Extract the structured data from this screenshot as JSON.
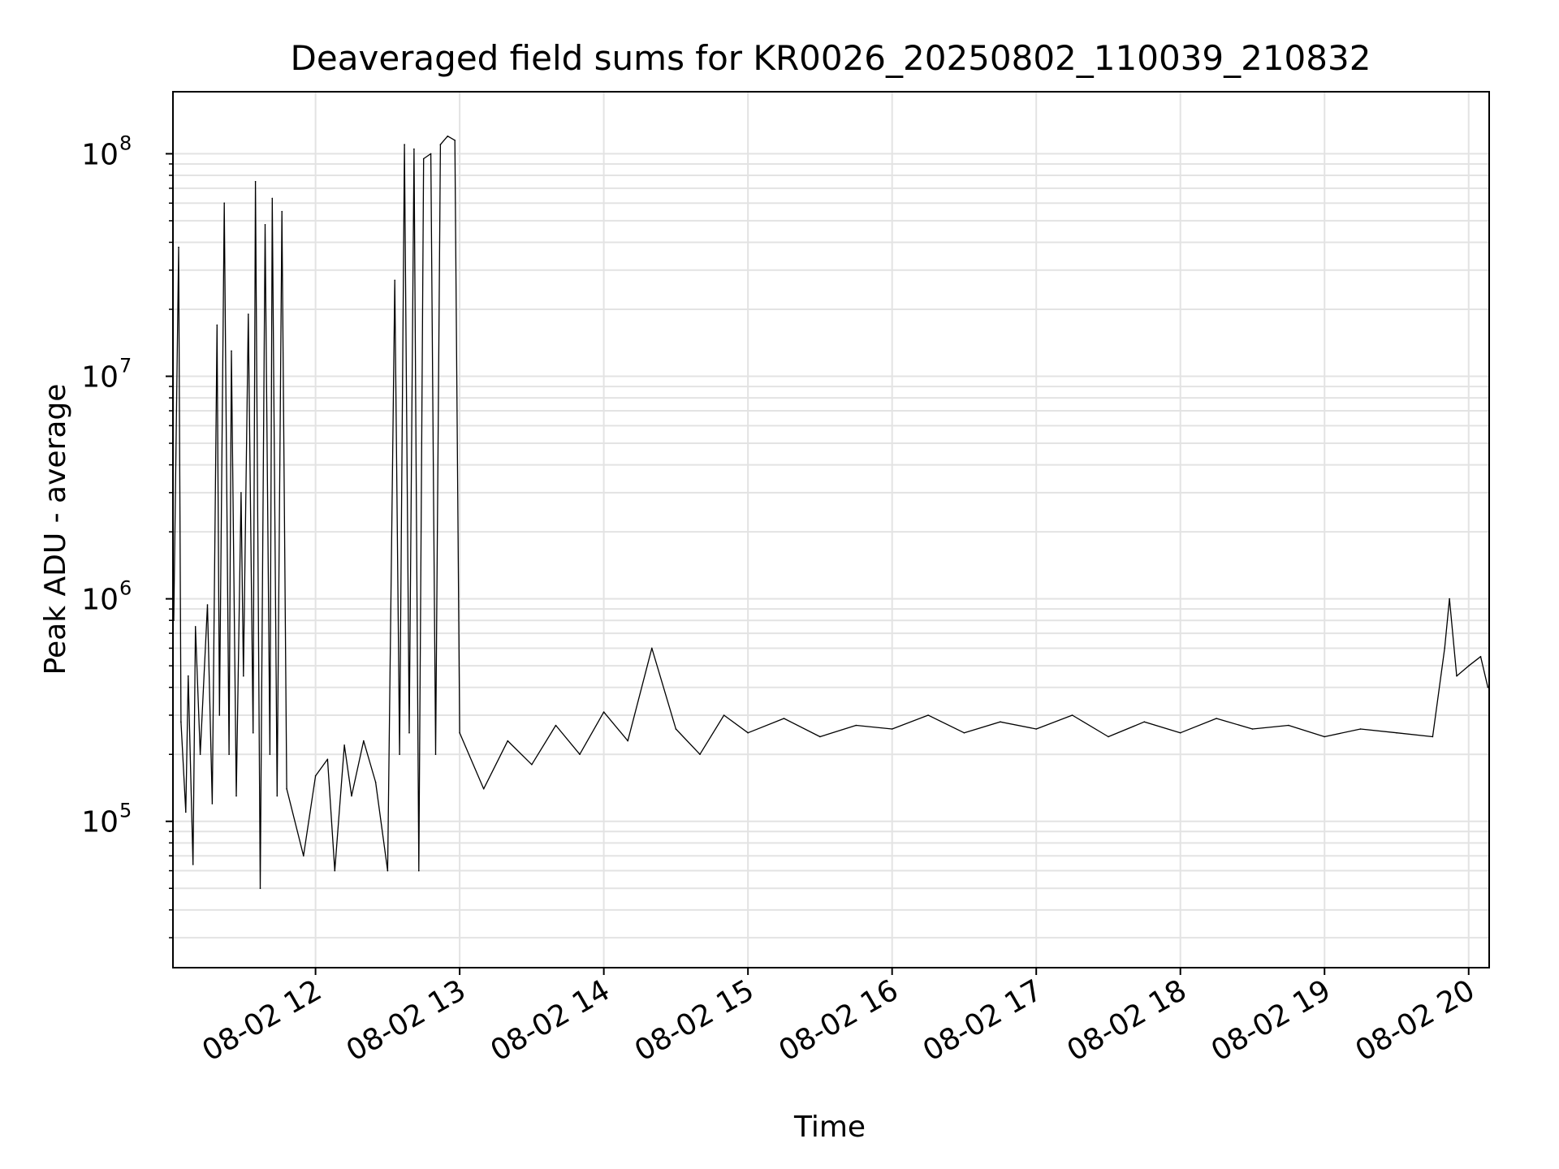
{
  "chart_data": {
    "type": "line",
    "title": "Deaveraged field sums for KR0026_20250802_110039_210832",
    "xlabel": "Time",
    "ylabel": "Peak ADU - average",
    "yscale": "log",
    "ylim": [
      22000,
      190000000
    ],
    "xlim": [
      "08-02 11:00:39",
      "08-02 20:08:32"
    ],
    "grid": true,
    "line_color": "#000000",
    "grid_color": "#e3e3e3",
    "x_ticks": [
      {
        "label": "08-02 12",
        "value": "08-02 12:00"
      },
      {
        "label": "08-02 13",
        "value": "08-02 13:00"
      },
      {
        "label": "08-02 14",
        "value": "08-02 14:00"
      },
      {
        "label": "08-02 15",
        "value": "08-02 15:00"
      },
      {
        "label": "08-02 16",
        "value": "08-02 16:00"
      },
      {
        "label": "08-02 17",
        "value": "08-02 17:00"
      },
      {
        "label": "08-02 18",
        "value": "08-02 18:00"
      },
      {
        "label": "08-02 19",
        "value": "08-02 19:00"
      },
      {
        "label": "08-02 20",
        "value": "08-02 20:00"
      }
    ],
    "y_ticks": [
      {
        "base": "10",
        "exp": "5",
        "value": 100000
      },
      {
        "base": "10",
        "exp": "6",
        "value": 1000000
      },
      {
        "base": "10",
        "exp": "7",
        "value": 10000000
      },
      {
        "base": "10",
        "exp": "8",
        "value": 100000000
      }
    ],
    "series": [
      {
        "points": [
          [
            "08-02 11:01",
            800000
          ],
          [
            "08-02 11:03",
            38000000
          ],
          [
            "08-02 11:04",
            280000
          ],
          [
            "08-02 11:06",
            110000
          ],
          [
            "08-02 11:07",
            450000
          ],
          [
            "08-02 11:09",
            64000
          ],
          [
            "08-02 11:10",
            750000
          ],
          [
            "08-02 11:12",
            200000
          ],
          [
            "08-02 11:15",
            940000
          ],
          [
            "08-02 11:17",
            120000
          ],
          [
            "08-02 11:19",
            17000000
          ],
          [
            "08-02 11:20",
            300000
          ],
          [
            "08-02 11:22",
            60000000
          ],
          [
            "08-02 11:24",
            200000
          ],
          [
            "08-02 11:25",
            13000000
          ],
          [
            "08-02 11:27",
            130000
          ],
          [
            "08-02 11:29",
            3000000
          ],
          [
            "08-02 11:30",
            450000
          ],
          [
            "08-02 11:32",
            19000000
          ],
          [
            "08-02 11:34",
            250000
          ],
          [
            "08-02 11:35",
            75000000
          ],
          [
            "08-02 11:37",
            50000
          ],
          [
            "08-02 11:39",
            48000000
          ],
          [
            "08-02 11:41",
            200000
          ],
          [
            "08-02 11:42",
            63000000
          ],
          [
            "08-02 11:44",
            130000
          ],
          [
            "08-02 11:46",
            55000000
          ],
          [
            "08-02 11:48",
            140000
          ],
          [
            "08-02 11:55",
            70000
          ],
          [
            "08-02 12:00",
            160000
          ],
          [
            "08-02 12:05",
            190000
          ],
          [
            "08-02 12:08",
            60000
          ],
          [
            "08-02 12:12",
            220000
          ],
          [
            "08-02 12:15",
            130000
          ],
          [
            "08-02 12:20",
            230000
          ],
          [
            "08-02 12:25",
            150000
          ],
          [
            "08-02 12:30",
            60000
          ],
          [
            "08-02 12:33",
            27000000
          ],
          [
            "08-02 12:35",
            200000
          ],
          [
            "08-02 12:37",
            110000000
          ],
          [
            "08-02 12:39",
            250000
          ],
          [
            "08-02 12:41",
            105000000
          ],
          [
            "08-02 12:43",
            60000
          ],
          [
            "08-02 12:45",
            95000000
          ],
          [
            "08-02 12:48",
            100000000
          ],
          [
            "08-02 12:50",
            200000
          ],
          [
            "08-02 12:52",
            110000000
          ],
          [
            "08-02 12:55",
            120000000
          ],
          [
            "08-02 12:58",
            115000000
          ],
          [
            "08-02 13:00",
            250000
          ],
          [
            "08-02 13:10",
            140000
          ],
          [
            "08-02 13:20",
            230000
          ],
          [
            "08-02 13:30",
            180000
          ],
          [
            "08-02 13:40",
            270000
          ],
          [
            "08-02 13:50",
            200000
          ],
          [
            "08-02 14:00",
            310000
          ],
          [
            "08-02 14:10",
            230000
          ],
          [
            "08-02 14:20",
            600000
          ],
          [
            "08-02 14:30",
            260000
          ],
          [
            "08-02 14:40",
            200000
          ],
          [
            "08-02 14:50",
            300000
          ],
          [
            "08-02 15:00",
            250000
          ],
          [
            "08-02 15:15",
            290000
          ],
          [
            "08-02 15:30",
            240000
          ],
          [
            "08-02 15:45",
            270000
          ],
          [
            "08-02 16:00",
            260000
          ],
          [
            "08-02 16:15",
            300000
          ],
          [
            "08-02 16:30",
            250000
          ],
          [
            "08-02 16:45",
            280000
          ],
          [
            "08-02 17:00",
            260000
          ],
          [
            "08-02 17:15",
            300000
          ],
          [
            "08-02 17:30",
            240000
          ],
          [
            "08-02 17:45",
            280000
          ],
          [
            "08-02 18:00",
            250000
          ],
          [
            "08-02 18:15",
            290000
          ],
          [
            "08-02 18:30",
            260000
          ],
          [
            "08-02 18:45",
            270000
          ],
          [
            "08-02 19:00",
            240000
          ],
          [
            "08-02 19:15",
            260000
          ],
          [
            "08-02 19:30",
            250000
          ],
          [
            "08-02 19:45",
            240000
          ],
          [
            "08-02 19:50",
            600000
          ],
          [
            "08-02 19:52",
            1000000
          ],
          [
            "08-02 19:55",
            450000
          ],
          [
            "08-02 20:00",
            500000
          ],
          [
            "08-02 20:05",
            550000
          ],
          [
            "08-02 20:08",
            400000
          ]
        ]
      }
    ]
  }
}
